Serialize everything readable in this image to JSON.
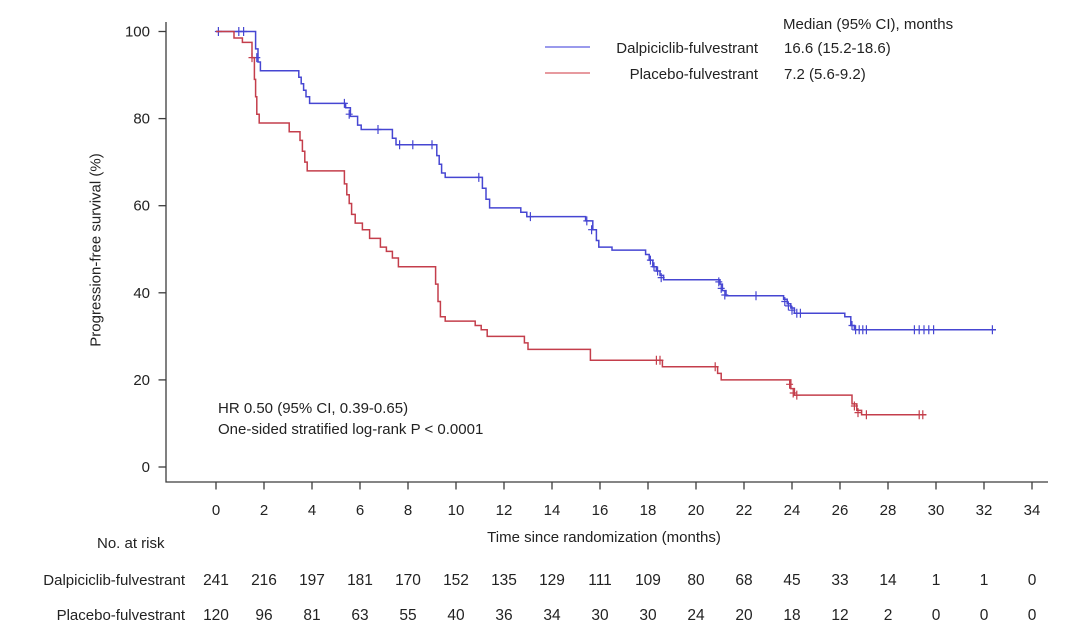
{
  "chart_data": {
    "type": "line",
    "subtype": "kaplan_meier_step",
    "title": "",
    "x_label": "Time since randomization (months)",
    "y_label": "Progression-free survival (%)",
    "x_ticks": [
      0,
      2,
      4,
      6,
      8,
      10,
      12,
      14,
      16,
      18,
      20,
      22,
      24,
      26,
      28,
      30,
      32,
      34
    ],
    "y_ticks": [
      0,
      20,
      40,
      60,
      80,
      100
    ],
    "xlim": [
      0,
      34
    ],
    "ylim": [
      0,
      100
    ],
    "grid": false,
    "legend_position": "top-right-inside",
    "legend_header": "Median (95% CI), months",
    "annotations": [
      "HR 0.50 (95% CI, 0.39-0.65)",
      "One-sided stratified log-rank P < 0.0001"
    ],
    "axis_color": "#3c3c3c",
    "text_color": "#222222",
    "series": [
      {
        "id": "dalpiciclib-fulvestrant",
        "name": "Dalpiciclib-fulvestrant",
        "median": "16.6 (15.2-18.6)",
        "color": "#4646d2",
        "legend_color": "#9a9aec",
        "start_value": 100,
        "end_time": 32.5,
        "steps": [
          [
            1.65,
            96
          ],
          [
            1.75,
            93
          ],
          [
            1.85,
            91
          ],
          [
            3.45,
            89.5
          ],
          [
            3.55,
            88
          ],
          [
            3.65,
            86.5
          ],
          [
            3.75,
            85
          ],
          [
            3.9,
            83.5
          ],
          [
            5.4,
            82.5
          ],
          [
            5.6,
            80.5
          ],
          [
            5.9,
            78.5
          ],
          [
            6.05,
            77.5
          ],
          [
            7.35,
            75.5
          ],
          [
            7.5,
            74
          ],
          [
            9.2,
            71.5
          ],
          [
            9.3,
            69.5
          ],
          [
            9.4,
            67.5
          ],
          [
            9.55,
            66.5
          ],
          [
            11.1,
            64
          ],
          [
            11.25,
            61.5
          ],
          [
            11.4,
            59.5
          ],
          [
            12.7,
            58.5
          ],
          [
            12.95,
            57.5
          ],
          [
            15.4,
            56.5
          ],
          [
            15.7,
            54.5
          ],
          [
            15.85,
            52
          ],
          [
            15.95,
            50.5
          ],
          [
            16.5,
            49.8
          ],
          [
            17.9,
            48.8
          ],
          [
            18.05,
            47.5
          ],
          [
            18.2,
            46
          ],
          [
            18.35,
            45
          ],
          [
            18.5,
            44
          ],
          [
            18.65,
            43
          ],
          [
            21.0,
            42
          ],
          [
            21.1,
            40.5
          ],
          [
            21.25,
            39.3
          ],
          [
            23.65,
            38.5
          ],
          [
            23.8,
            37.5
          ],
          [
            23.95,
            36.5
          ],
          [
            24.1,
            35.3
          ],
          [
            26.2,
            34.5
          ],
          [
            26.45,
            32.5
          ],
          [
            26.6,
            31.5
          ]
        ],
        "censors": [
          [
            0.1,
            100
          ],
          [
            0.95,
            100
          ],
          [
            1.15,
            100
          ],
          [
            1.7,
            94
          ],
          [
            5.35,
            83.5
          ],
          [
            5.55,
            81
          ],
          [
            6.75,
            77.5
          ],
          [
            7.65,
            74
          ],
          [
            8.2,
            74
          ],
          [
            9.0,
            74
          ],
          [
            10.95,
            66.5
          ],
          [
            13.1,
            57.5
          ],
          [
            15.45,
            56.5
          ],
          [
            15.65,
            54.5
          ],
          [
            18.1,
            47.5
          ],
          [
            18.25,
            46
          ],
          [
            18.4,
            45
          ],
          [
            18.55,
            43.5
          ],
          [
            20.95,
            42.5
          ],
          [
            21.05,
            41
          ],
          [
            21.2,
            39.5
          ],
          [
            22.5,
            39.3
          ],
          [
            23.7,
            38
          ],
          [
            23.85,
            37
          ],
          [
            24.0,
            36
          ],
          [
            24.2,
            35.3
          ],
          [
            24.35,
            35.3
          ],
          [
            26.5,
            32.5
          ],
          [
            26.65,
            31.5
          ],
          [
            26.8,
            31.5
          ],
          [
            26.95,
            31.5
          ],
          [
            27.1,
            31.5
          ],
          [
            29.1,
            31.5
          ],
          [
            29.3,
            31.5
          ],
          [
            29.5,
            31.5
          ],
          [
            29.7,
            31.5
          ],
          [
            29.9,
            31.5
          ],
          [
            32.35,
            31.5
          ]
        ]
      },
      {
        "id": "placebo-fulvestrant",
        "name": "Placebo-fulvestrant",
        "median": "7.2 (5.6-9.2)",
        "color": "#c43e4b",
        "legend_color": "#e79a9f",
        "start_value": 100,
        "end_time": 29.6,
        "steps": [
          [
            0.75,
            98.5
          ],
          [
            1.1,
            97.5
          ],
          [
            1.5,
            94
          ],
          [
            1.6,
            89
          ],
          [
            1.65,
            85
          ],
          [
            1.7,
            81
          ],
          [
            1.8,
            79
          ],
          [
            3.05,
            77
          ],
          [
            3.5,
            75
          ],
          [
            3.6,
            72.5
          ],
          [
            3.7,
            70
          ],
          [
            3.8,
            68
          ],
          [
            5.35,
            65
          ],
          [
            5.45,
            62.5
          ],
          [
            5.55,
            60.5
          ],
          [
            5.65,
            58
          ],
          [
            5.8,
            56
          ],
          [
            6.1,
            54.5
          ],
          [
            6.4,
            52.5
          ],
          [
            6.85,
            50.5
          ],
          [
            7.1,
            49.5
          ],
          [
            7.35,
            48
          ],
          [
            7.6,
            46
          ],
          [
            9.15,
            42
          ],
          [
            9.25,
            38
          ],
          [
            9.35,
            34.5
          ],
          [
            9.55,
            33.5
          ],
          [
            10.8,
            32.5
          ],
          [
            11.05,
            31.5
          ],
          [
            11.3,
            30
          ],
          [
            12.85,
            28.5
          ],
          [
            13.0,
            27
          ],
          [
            15.6,
            24.5
          ],
          [
            18.6,
            23
          ],
          [
            20.9,
            21.5
          ],
          [
            21.05,
            20
          ],
          [
            23.95,
            18
          ],
          [
            24.1,
            16.5
          ],
          [
            26.5,
            14.5
          ],
          [
            26.7,
            13
          ],
          [
            26.9,
            12
          ]
        ],
        "censors": [
          [
            1.5,
            94
          ],
          [
            18.35,
            24.5
          ],
          [
            18.5,
            24.5
          ],
          [
            20.8,
            23
          ],
          [
            23.9,
            19
          ],
          [
            24.05,
            17
          ],
          [
            24.2,
            16.5
          ],
          [
            26.6,
            14
          ],
          [
            26.75,
            12.5
          ],
          [
            27.1,
            12
          ],
          [
            29.3,
            12
          ],
          [
            29.45,
            12
          ]
        ]
      }
    ]
  },
  "risk_table": {
    "title": "No. at risk",
    "rows": [
      {
        "label": "Dalpiciclib-fulvestrant",
        "counts": [
          241,
          216,
          197,
          181,
          170,
          152,
          135,
          129,
          111,
          109,
          80,
          68,
          45,
          33,
          14,
          1,
          1,
          0
        ]
      },
      {
        "label": "Placebo-fulvestrant",
        "counts": [
          120,
          96,
          81,
          63,
          55,
          40,
          36,
          34,
          30,
          30,
          24,
          20,
          18,
          12,
          2,
          0,
          0,
          0
        ]
      }
    ]
  }
}
